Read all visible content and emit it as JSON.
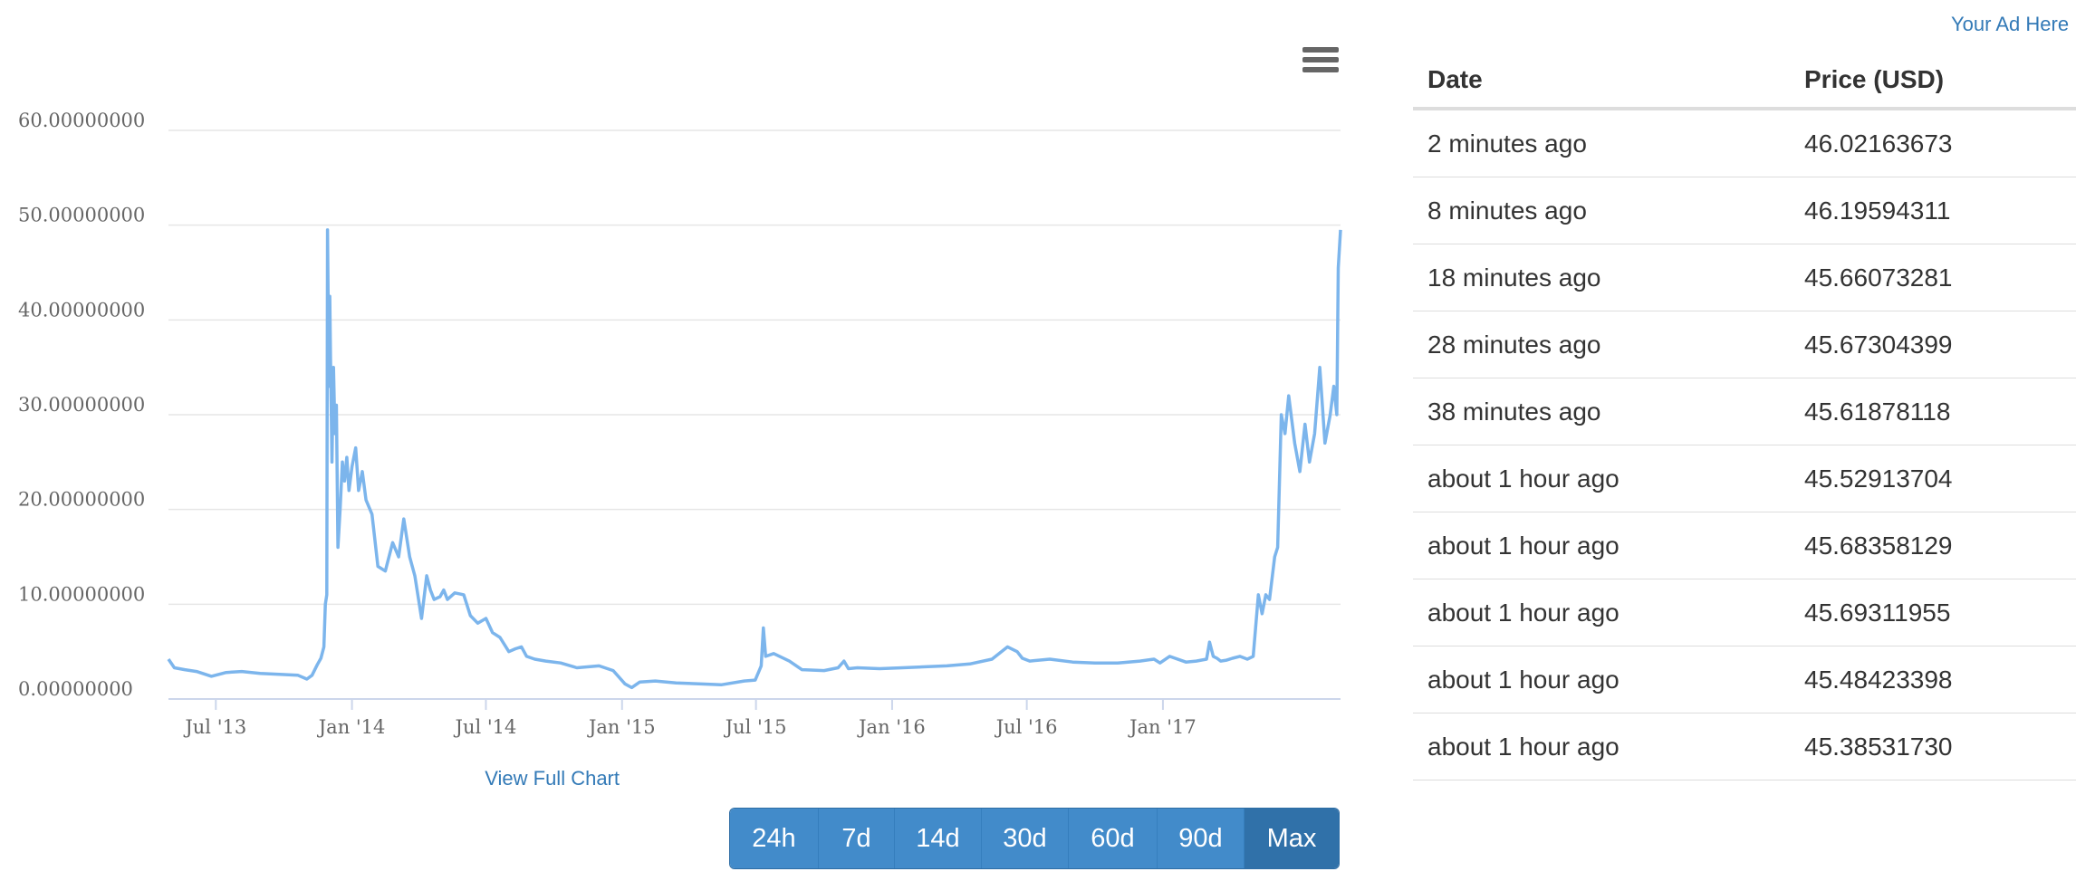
{
  "chart": {
    "menu_icon": "hamburger-menu-icon",
    "view_full_label": "View Full Chart",
    "ranges": [
      "24h",
      "7d",
      "14d",
      "30d",
      "60d",
      "90d",
      "Max"
    ],
    "active_range": "Max"
  },
  "ad_label": "Your Ad Here",
  "table": {
    "headers": [
      "Date",
      "Price (USD)"
    ],
    "rows": [
      {
        "date": "2 minutes ago",
        "price": "46.02163673"
      },
      {
        "date": "8 minutes ago",
        "price": "46.19594311"
      },
      {
        "date": "18 minutes ago",
        "price": "45.66073281"
      },
      {
        "date": "28 minutes ago",
        "price": "45.67304399"
      },
      {
        "date": "38 minutes ago",
        "price": "45.61878118"
      },
      {
        "date": "about 1 hour ago",
        "price": "45.52913704"
      },
      {
        "date": "about 1 hour ago",
        "price": "45.68358129"
      },
      {
        "date": "about 1 hour ago",
        "price": "45.69311955"
      },
      {
        "date": "about 1 hour ago",
        "price": "45.48423398"
      },
      {
        "date": "about 1 hour ago",
        "price": "45.38531730"
      }
    ]
  },
  "chart_data": {
    "type": "line",
    "title": "",
    "xlabel": "",
    "ylabel": "",
    "grid": true,
    "line_color": "#7cb5ec",
    "ylim": [
      0,
      60
    ],
    "xlim": [
      "2013-04-28",
      "2017-08-29"
    ],
    "y_ticks": [
      {
        "value": 0,
        "label": "0.00000000"
      },
      {
        "value": 10,
        "label": "10.00000000"
      },
      {
        "value": 20,
        "label": "20.00000000"
      },
      {
        "value": 30,
        "label": "30.00000000"
      },
      {
        "value": 40,
        "label": "40.00000000"
      },
      {
        "value": 50,
        "label": "50.00000000"
      },
      {
        "value": 60,
        "label": "60.00000000"
      }
    ],
    "x_ticks": [
      {
        "value": "2013-07-01",
        "label": "Jul '13"
      },
      {
        "value": "2014-01-01",
        "label": "Jan '14"
      },
      {
        "value": "2014-07-01",
        "label": "Jul '14"
      },
      {
        "value": "2015-01-01",
        "label": "Jan '15"
      },
      {
        "value": "2015-07-01",
        "label": "Jul '15"
      },
      {
        "value": "2016-01-01",
        "label": "Jan '16"
      },
      {
        "value": "2016-07-01",
        "label": "Jul '16"
      },
      {
        "value": "2017-01-01",
        "label": "Jan '17"
      }
    ],
    "series": [
      {
        "x": [
          "2013-04-28",
          "2013-05-06",
          "2013-05-20",
          "2013-06-05",
          "2013-06-25",
          "2013-07-15",
          "2013-08-05",
          "2013-08-30",
          "2013-09-25",
          "2013-10-20",
          "2013-11-01",
          "2013-11-08",
          "2013-11-15",
          "2013-11-20",
          "2013-11-24",
          "2013-11-26",
          "2013-11-28",
          "2013-11-29",
          "2013-11-30",
          "2013-12-01",
          "2013-12-02",
          "2013-12-03",
          "2013-12-05",
          "2013-12-07",
          "2013-12-09",
          "2013-12-11",
          "2013-12-13",
          "2013-12-16",
          "2013-12-19",
          "2013-12-22",
          "2013-12-25",
          "2013-12-28",
          "2014-01-01",
          "2014-01-06",
          "2014-01-10",
          "2014-01-15",
          "2014-01-20",
          "2014-01-28",
          "2014-02-05",
          "2014-02-15",
          "2014-02-25",
          "2014-03-05",
          "2014-03-12",
          "2014-03-20",
          "2014-03-27",
          "2014-04-05",
          "2014-04-12",
          "2014-04-17",
          "2014-04-22",
          "2014-04-30",
          "2014-05-05",
          "2014-05-10",
          "2014-05-20",
          "2014-06-01",
          "2014-06-10",
          "2014-06-20",
          "2014-07-01",
          "2014-07-10",
          "2014-07-20",
          "2014-08-01",
          "2014-08-10",
          "2014-08-18",
          "2014-08-25",
          "2014-09-05",
          "2014-09-20",
          "2014-10-10",
          "2014-11-01",
          "2014-12-01",
          "2014-12-20",
          "2015-01-05",
          "2015-01-14",
          "2015-01-25",
          "2015-02-15",
          "2015-03-15",
          "2015-04-15",
          "2015-05-15",
          "2015-06-15",
          "2015-06-30",
          "2015-07-08",
          "2015-07-11",
          "2015-07-14",
          "2015-07-25",
          "2015-08-15",
          "2015-09-01",
          "2015-10-01",
          "2015-10-20",
          "2015-10-28",
          "2015-11-03",
          "2015-11-15",
          "2015-12-15",
          "2016-01-15",
          "2016-02-15",
          "2016-03-15",
          "2016-04-15",
          "2016-05-15",
          "2016-06-05",
          "2016-06-18",
          "2016-06-25",
          "2016-07-05",
          "2016-08-01",
          "2016-09-01",
          "2016-10-01",
          "2016-11-01",
          "2016-12-01",
          "2016-12-20",
          "2016-12-28",
          "2017-01-10",
          "2017-02-01",
          "2017-02-15",
          "2017-03-01",
          "2017-03-05",
          "2017-03-10",
          "2017-03-15",
          "2017-03-20",
          "2017-03-28",
          "2017-04-05",
          "2017-04-15",
          "2017-04-25",
          "2017-05-03",
          "2017-05-10",
          "2017-05-15",
          "2017-05-20",
          "2017-05-25",
          "2017-06-01",
          "2017-06-05",
          "2017-06-10",
          "2017-06-15",
          "2017-06-20",
          "2017-06-28",
          "2017-07-05",
          "2017-07-12",
          "2017-07-18",
          "2017-07-25",
          "2017-08-01",
          "2017-08-08",
          "2017-08-15",
          "2017-08-20",
          "2017-08-24",
          "2017-08-26",
          "2017-08-29"
        ],
        "y": [
          4.2,
          3.3,
          3.1,
          2.9,
          2.4,
          2.8,
          2.9,
          2.7,
          2.6,
          2.5,
          2.1,
          2.5,
          3.6,
          4.3,
          5.5,
          10.0,
          11.0,
          49.5,
          40.0,
          33.0,
          42.5,
          36.0,
          25.0,
          35.0,
          28.0,
          31.0,
          16.0,
          20.0,
          25.0,
          23.0,
          25.5,
          22.0,
          24.5,
          26.5,
          22.0,
          24.0,
          21.0,
          19.5,
          14.0,
          13.5,
          16.5,
          15.0,
          19.0,
          15.0,
          13.0,
          8.5,
          13.0,
          11.5,
          10.5,
          10.8,
          11.5,
          10.5,
          11.2,
          11.0,
          8.8,
          8.0,
          8.5,
          7.0,
          6.5,
          5.0,
          5.3,
          5.5,
          4.5,
          4.2,
          4.0,
          3.8,
          3.3,
          3.5,
          3.0,
          1.6,
          1.2,
          1.8,
          1.9,
          1.7,
          1.6,
          1.5,
          1.9,
          2.0,
          3.5,
          7.5,
          4.5,
          4.8,
          4.0,
          3.1,
          3.0,
          3.3,
          4.0,
          3.2,
          3.3,
          3.2,
          3.3,
          3.4,
          3.5,
          3.7,
          4.2,
          5.5,
          5.0,
          4.3,
          4.0,
          4.2,
          3.9,
          3.8,
          3.8,
          4.0,
          4.2,
          3.8,
          4.5,
          3.9,
          4.0,
          4.2,
          6.0,
          4.5,
          4.3,
          4.0,
          4.1,
          4.3,
          4.5,
          4.2,
          4.5,
          11.0,
          9.0,
          11.0,
          10.5,
          15.0,
          16.0,
          30.0,
          28.0,
          32.0,
          27.0,
          24.0,
          29.0,
          25.0,
          28.0,
          35.0,
          27.0,
          30.0,
          33.0,
          30.0,
          45.5,
          49.5
        ]
      }
    ]
  }
}
